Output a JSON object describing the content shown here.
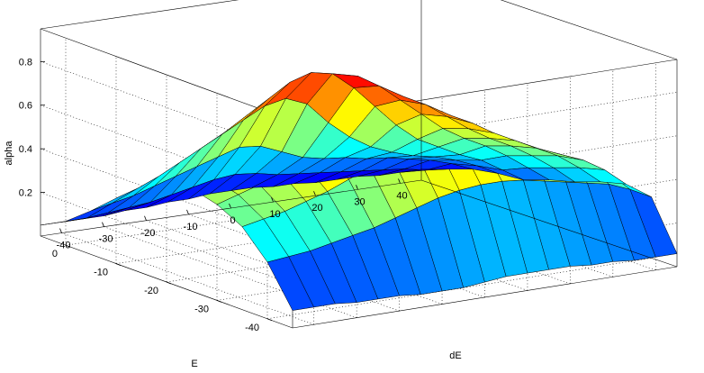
{
  "chart_data": {
    "type": "surface",
    "title": "",
    "xlabel": "dE",
    "ylabel": "E",
    "zlabel": "alpha",
    "x_ticks": [
      -40,
      -30,
      -20,
      -10,
      0,
      10,
      20,
      30,
      40
    ],
    "y_ticks": [
      -40,
      -30,
      -20,
      -10,
      0
    ],
    "z_ticks": [
      0.2,
      0.4,
      0.6,
      0.8
    ],
    "x_range": [
      -45,
      45
    ],
    "y_range": [
      -45,
      5
    ],
    "z_range": [
      0,
      0.95
    ],
    "grid": true,
    "colormap": "jet",
    "x_grid": [
      -45,
      -40,
      -35,
      -30,
      -25,
      -20,
      -15,
      -10,
      -5,
      0,
      5,
      10,
      15,
      20,
      25,
      30,
      35,
      40,
      45
    ],
    "y_grid": [
      -45,
      -40,
      -35,
      -30,
      -25,
      -20,
      -15,
      -10,
      -5,
      0,
      5
    ],
    "alpha": [
      [
        0.08,
        0.08,
        0.08,
        0.07,
        0.07,
        0.07,
        0.06,
        0.06,
        0.06,
        0.07,
        0.08,
        0.08,
        0.08,
        0.08,
        0.07,
        0.07,
        0.06,
        0.06,
        0.06
      ],
      [
        0.26,
        0.27,
        0.28,
        0.3,
        0.32,
        0.34,
        0.37,
        0.4,
        0.43,
        0.45,
        0.46,
        0.46,
        0.45,
        0.43,
        0.41,
        0.39,
        0.37,
        0.33,
        0.28
      ],
      [
        0.38,
        0.4,
        0.42,
        0.45,
        0.48,
        0.52,
        0.56,
        0.6,
        0.63,
        0.65,
        0.65,
        0.63,
        0.6,
        0.56,
        0.52,
        0.48,
        0.44,
        0.38,
        0.3
      ],
      [
        0.44,
        0.47,
        0.5,
        0.54,
        0.58,
        0.62,
        0.66,
        0.7,
        0.73,
        0.74,
        0.72,
        0.68,
        0.63,
        0.57,
        0.52,
        0.47,
        0.42,
        0.35,
        0.27
      ],
      [
        0.47,
        0.5,
        0.54,
        0.59,
        0.63,
        0.67,
        0.71,
        0.75,
        0.78,
        0.78,
        0.74,
        0.69,
        0.62,
        0.55,
        0.49,
        0.44,
        0.38,
        0.31,
        0.23
      ],
      [
        0.45,
        0.49,
        0.54,
        0.59,
        0.64,
        0.69,
        0.74,
        0.79,
        0.82,
        0.81,
        0.75,
        0.67,
        0.59,
        0.51,
        0.45,
        0.4,
        0.34,
        0.27,
        0.2
      ],
      [
        0.38,
        0.42,
        0.47,
        0.53,
        0.59,
        0.65,
        0.71,
        0.77,
        0.8,
        0.78,
        0.7,
        0.6,
        0.5,
        0.42,
        0.37,
        0.32,
        0.28,
        0.22,
        0.16
      ],
      [
        0.3,
        0.33,
        0.37,
        0.42,
        0.47,
        0.52,
        0.57,
        0.62,
        0.64,
        0.6,
        0.5,
        0.42,
        0.36,
        0.32,
        0.29,
        0.27,
        0.24,
        0.2,
        0.15
      ],
      [
        0.2,
        0.22,
        0.24,
        0.27,
        0.3,
        0.33,
        0.36,
        0.39,
        0.38,
        0.34,
        0.3,
        0.28,
        0.27,
        0.25,
        0.24,
        0.22,
        0.2,
        0.17,
        0.13
      ],
      [
        0.11,
        0.11,
        0.12,
        0.13,
        0.14,
        0.16,
        0.18,
        0.2,
        0.21,
        0.2,
        0.18,
        0.17,
        0.16,
        0.15,
        0.14,
        0.13,
        0.12,
        0.1,
        0.09
      ],
      [
        0.05,
        0.05,
        0.05,
        0.05,
        0.06,
        0.06,
        0.07,
        0.07,
        0.08,
        0.08,
        0.08,
        0.07,
        0.07,
        0.06,
        0.06,
        0.06,
        0.05,
        0.05,
        0.05
      ]
    ]
  }
}
